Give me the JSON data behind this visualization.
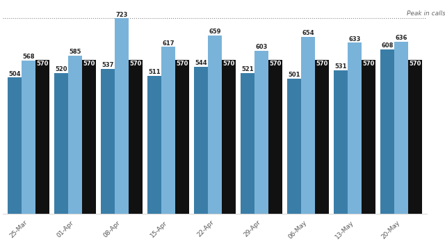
{
  "weeks": [
    "25-Mar",
    "01-Apr",
    "08-Apr",
    "15-Apr",
    "22-Apr",
    "29-Apr",
    "06-May",
    "13-May",
    "20-May"
  ],
  "dark_teal": [
    504,
    520,
    537,
    511,
    544,
    521,
    501,
    531,
    608
  ],
  "light_blue": [
    568,
    585,
    723,
    617,
    659,
    603,
    654,
    633,
    636
  ],
  "black_bar": [
    570,
    570,
    570,
    570,
    570,
    570,
    570,
    570,
    570
  ],
  "peak_line": 723,
  "peak_label": "Peak in calls",
  "bar_color_dark": "#3a7ea8",
  "bar_color_light": "#7ab3d9",
  "bar_color_black": "#111111",
  "background_color": "#ffffff",
  "label_fontsize": 6.0,
  "tick_fontsize": 6.5,
  "peak_fontsize": 6.5
}
